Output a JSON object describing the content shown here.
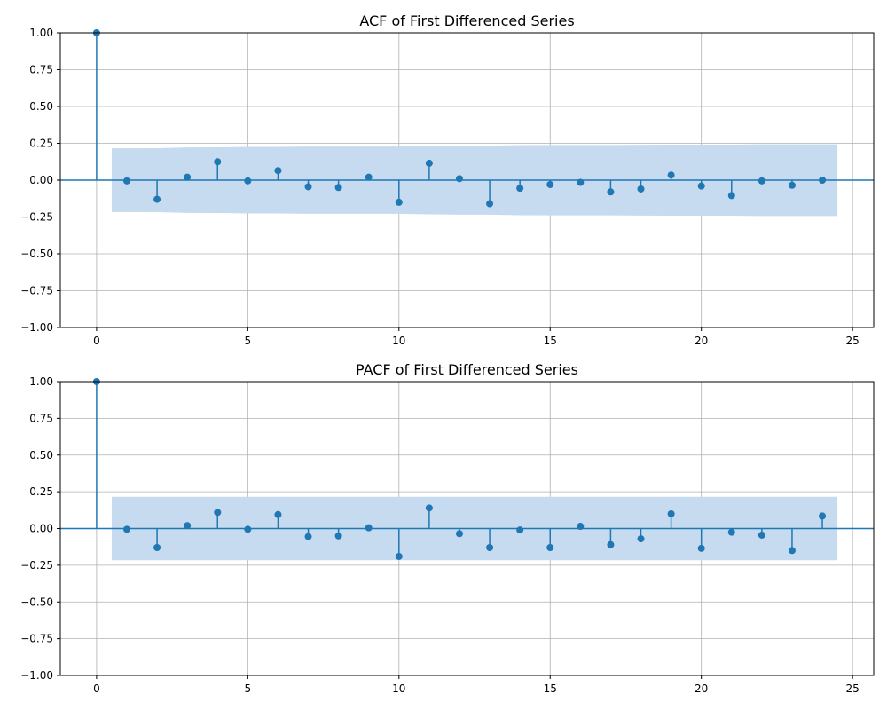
{
  "chart_data": [
    {
      "type": "stem",
      "title": "ACF of First Differenced Series",
      "xlabel": "",
      "ylabel": "",
      "xlim": [
        -1.2,
        25.7
      ],
      "ylim": [
        -1.0,
        1.0
      ],
      "xticks": [
        0,
        5,
        10,
        15,
        20,
        25
      ],
      "yticks": [
        -1.0,
        -0.75,
        -0.5,
        -0.25,
        0.0,
        0.25,
        0.5,
        0.75,
        1.0
      ],
      "yticklabels": [
        "−1.00",
        "−0.75",
        "−0.50",
        "−0.25",
        "0.00",
        "0.25",
        "0.50",
        "0.75",
        "1.00"
      ],
      "grid": true,
      "lags": [
        0,
        1,
        2,
        3,
        4,
        5,
        6,
        7,
        8,
        9,
        10,
        11,
        12,
        13,
        14,
        15,
        16,
        17,
        18,
        19,
        20,
        21,
        22,
        23,
        24
      ],
      "values": [
        1.0,
        -0.005,
        -0.13,
        0.02,
        0.125,
        -0.005,
        0.065,
        -0.045,
        -0.05,
        0.02,
        -0.15,
        0.115,
        0.01,
        -0.16,
        -0.055,
        -0.03,
        -0.015,
        -0.08,
        -0.06,
        0.035,
        -0.04,
        -0.105,
        -0.005,
        -0.035,
        0.0
      ],
      "confint_lags": [
        0.5,
        1,
        2,
        3,
        4,
        5,
        6,
        7,
        8,
        9,
        10,
        11,
        12,
        13,
        14,
        15,
        16,
        17,
        18,
        19,
        20,
        21,
        22,
        23,
        24,
        24.5
      ],
      "confint_upper": [
        0.216,
        0.216,
        0.217,
        0.222,
        0.223,
        0.226,
        0.226,
        0.228,
        0.228,
        0.228,
        0.228,
        0.232,
        0.234,
        0.234,
        0.238,
        0.239,
        0.239,
        0.239,
        0.24,
        0.241,
        0.241,
        0.241,
        0.243,
        0.243,
        0.243,
        0.243
      ],
      "colors": {
        "marker": "#1f77b4",
        "band": "#c6dbef"
      }
    },
    {
      "type": "stem",
      "title": "PACF of First Differenced Series",
      "xlabel": "",
      "ylabel": "",
      "xlim": [
        -1.2,
        25.7
      ],
      "ylim": [
        -1.0,
        1.0
      ],
      "xticks": [
        0,
        5,
        10,
        15,
        20,
        25
      ],
      "yticks": [
        -1.0,
        -0.75,
        -0.5,
        -0.25,
        0.0,
        0.25,
        0.5,
        0.75,
        1.0
      ],
      "yticklabels": [
        "−1.00",
        "−0.75",
        "−0.50",
        "−0.25",
        "0.00",
        "0.25",
        "0.50",
        "0.75",
        "1.00"
      ],
      "grid": true,
      "lags": [
        0,
        1,
        2,
        3,
        4,
        5,
        6,
        7,
        8,
        9,
        10,
        11,
        12,
        13,
        14,
        15,
        16,
        17,
        18,
        19,
        20,
        21,
        22,
        23,
        24
      ],
      "values": [
        1.0,
        -0.005,
        -0.13,
        0.02,
        0.11,
        -0.005,
        0.095,
        -0.055,
        -0.05,
        0.005,
        -0.19,
        0.14,
        -0.035,
        -0.13,
        -0.01,
        -0.13,
        0.015,
        -0.11,
        -0.07,
        0.1,
        -0.135,
        -0.025,
        -0.045,
        -0.15,
        0.085
      ],
      "confint_lags": [
        0.5,
        24.5
      ],
      "confint_upper": [
        0.216,
        0.216
      ],
      "colors": {
        "marker": "#1f77b4",
        "band": "#c6dbef"
      }
    }
  ]
}
